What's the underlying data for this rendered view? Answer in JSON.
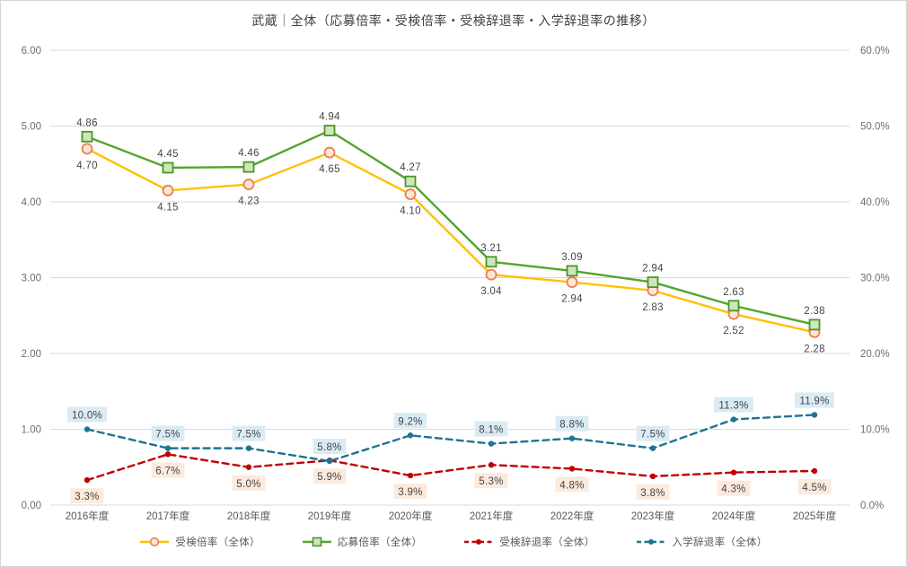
{
  "chart_data": {
    "type": "line",
    "title": "武蔵｜全体（応募倍率・受検倍率・受検辞退率・入学辞退率の推移）",
    "categories": [
      "2016年度",
      "2017年度",
      "2018年度",
      "2019年度",
      "2020年度",
      "2021年度",
      "2022年度",
      "2023年度",
      "2024年度",
      "2025年度"
    ],
    "left_axis": {
      "min": 0,
      "max": 6,
      "ticks": [
        "0.00",
        "1.00",
        "2.00",
        "3.00",
        "4.00",
        "5.00",
        "6.00"
      ]
    },
    "right_axis": {
      "min": 0,
      "max": 60,
      "ticks": [
        "0.0%",
        "10.0%",
        "20.0%",
        "30.0%",
        "40.0%",
        "50.0%",
        "60.0%"
      ]
    },
    "grid": true,
    "legend_position": "bottom",
    "colors": {
      "gridline": "#d9d9d9",
      "axis_text": "#6f6f6f",
      "xaxis_text": "#595959",
      "data_label_text": "#454545",
      "title_text": "#404040"
    },
    "series": [
      {
        "name": "受検倍率（全体）",
        "axis": "left",
        "values": [
          4.7,
          4.15,
          4.23,
          4.65,
          4.1,
          3.04,
          2.94,
          2.83,
          2.52,
          2.28
        ],
        "labels": [
          "4.70",
          "4.15",
          "4.23",
          "4.65",
          "4.10",
          "3.04",
          "2.94",
          "2.83",
          "2.52",
          "2.28"
        ],
        "color": "#FFC000",
        "dash": false,
        "marker": "circle",
        "marker_fill": "#FCE6D8",
        "marker_stroke": "#EC7D50",
        "label_pos": "below",
        "label_bg": ""
      },
      {
        "name": "応募倍率（全体）",
        "axis": "left",
        "values": [
          4.86,
          4.45,
          4.46,
          4.94,
          4.27,
          3.21,
          3.09,
          2.94,
          2.63,
          2.38
        ],
        "labels": [
          "4.86",
          "4.45",
          "4.46",
          "4.94",
          "4.27",
          "3.21",
          "3.09",
          "2.94",
          "2.63",
          "2.38"
        ],
        "color": "#55A32E",
        "dash": false,
        "marker": "square",
        "marker_fill": "#CDE6BA",
        "marker_stroke": "#4B9628",
        "label_pos": "above",
        "label_bg": ""
      },
      {
        "name": "受検辞退率（全体）",
        "axis": "right",
        "values": [
          3.3,
          6.7,
          5.0,
          5.9,
          3.9,
          5.3,
          4.8,
          3.8,
          4.3,
          4.5
        ],
        "labels": [
          "3.3%",
          "6.7%",
          "5.0%",
          "5.9%",
          "3.9%",
          "5.3%",
          "4.8%",
          "3.8%",
          "4.3%",
          "4.5%"
        ],
        "color": "#C00000",
        "dash": true,
        "marker": "dot",
        "marker_fill": "#C00000",
        "marker_stroke": "#C00000",
        "label_pos": "below",
        "label_bg": "#FCEADC"
      },
      {
        "name": "入学辞退率（全体）",
        "axis": "right",
        "values": [
          10.0,
          7.5,
          7.5,
          5.8,
          9.2,
          8.1,
          8.8,
          7.5,
          11.3,
          11.9
        ],
        "labels": [
          "10.0%",
          "7.5%",
          "7.5%",
          "5.8%",
          "9.2%",
          "8.1%",
          "8.8%",
          "7.5%",
          "11.3%",
          "11.9%"
        ],
        "color": "#1F7394",
        "dash": true,
        "marker": "dot",
        "marker_fill": "#1F7394",
        "marker_stroke": "#1F7394",
        "label_pos": "above",
        "label_bg": "#DAEBF5"
      }
    ]
  }
}
